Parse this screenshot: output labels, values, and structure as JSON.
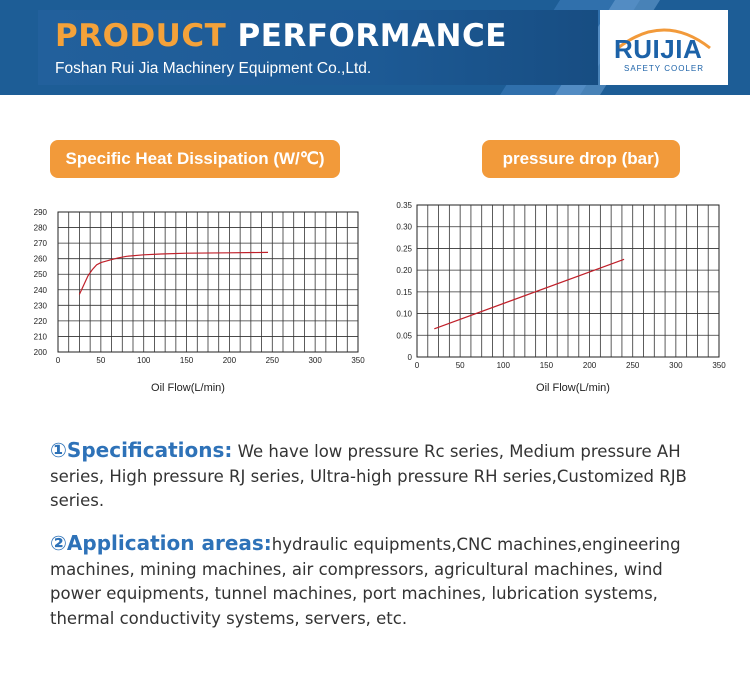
{
  "banner": {
    "title_word1": "PRODUCT",
    "title_word2": "PERFORMANCE",
    "subtitle": "Foshan Rui Jia Machinery Equipment Co.,Ltd.",
    "logo_text": "RUIJIA",
    "logo_sub": "SAFETY COOLER",
    "colors": {
      "banner": "#1d5d96",
      "accent": "#f4a23a",
      "logo": "#1c62a8"
    }
  },
  "headers": {
    "left": "Specific Heat Dissipation (W/℃)",
    "right": "pressure drop (bar)"
  },
  "chart_data": [
    {
      "type": "line",
      "xlabel": "Oil Flow(L/min)",
      "ylabel": "",
      "xlim": [
        0,
        350
      ],
      "ylim": [
        200,
        290
      ],
      "xticks": [
        "0",
        "50",
        "100",
        "150",
        "200",
        "250",
        "300",
        "350"
      ],
      "yticks": [
        "200",
        "210",
        "220",
        "230",
        "240",
        "250",
        "260",
        "270",
        "280",
        "290"
      ],
      "grid": true,
      "series": [
        {
          "x": [
            25,
            30,
            35,
            40,
            45,
            50,
            60,
            70,
            80,
            100,
            120,
            150,
            200,
            245
          ],
          "y": [
            237,
            243,
            249,
            253,
            256,
            257.5,
            259,
            260.5,
            261.5,
            262.5,
            263,
            263.5,
            263.8,
            264
          ]
        }
      ]
    },
    {
      "type": "line",
      "xlabel": "Oil Flow(L/min)",
      "ylabel": "",
      "xlim": [
        0,
        350
      ],
      "ylim": [
        0,
        0.35
      ],
      "xticks": [
        "0",
        "50",
        "100",
        "150",
        "200",
        "250",
        "300",
        "350"
      ],
      "yticks": [
        "0",
        "0.05",
        "0.10",
        "0.15",
        "0.20",
        "0.25",
        "0.30",
        "0.35"
      ],
      "grid": true,
      "series": [
        {
          "x": [
            20,
            240
          ],
          "y": [
            0.065,
            0.225
          ]
        }
      ]
    }
  ],
  "specs": {
    "lead": "①Specifications:",
    "body": " We have low pressure Rc series, Medium pressure AH series, High pressure RJ series, Ultra-high pressure RH series,Customized RJB series."
  },
  "apps": {
    "lead": "②Application areas:",
    "body": "hydraulic equipments,CNC machines,engineering machines, mining machines, air compressors, agricultural machines, wind power equipments, tunnel machines, port machines, lubrication systems, thermal conductivity systems, servers, etc."
  }
}
